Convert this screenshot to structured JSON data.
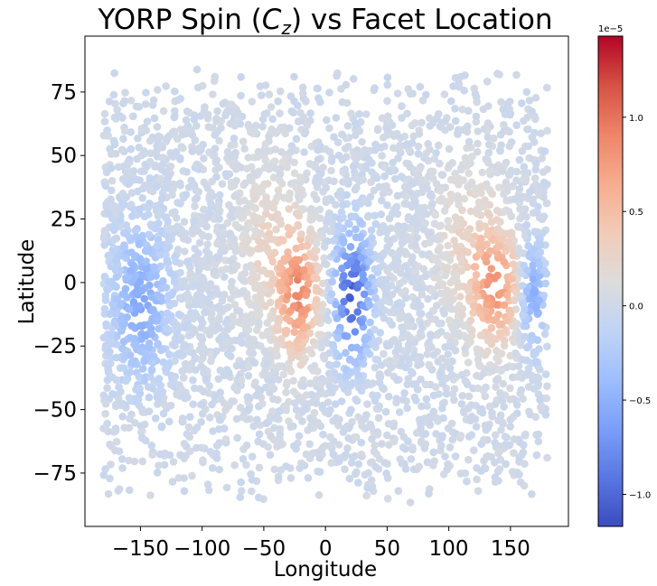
{
  "chart_data": {
    "type": "scatter",
    "title_prefix": "YORP Spin (",
    "title_var": "C",
    "title_sub": "z",
    "title_suffix": ") vs Facet Location",
    "xlabel": "Longitude",
    "ylabel": "Latitude",
    "xlim": [
      -195,
      197
    ],
    "ylim": [
      -96,
      97
    ],
    "xticks": [
      -150,
      -100,
      -50,
      0,
      50,
      100,
      150
    ],
    "xtick_labels": [
      "−150",
      "−100",
      "−50",
      "0",
      "50",
      "100",
      "150"
    ],
    "yticks": [
      75,
      50,
      25,
      0,
      -25,
      -50,
      -75
    ],
    "ytick_labels": [
      "75",
      "50",
      "25",
      "0",
      "−25",
      "−50",
      "−75"
    ],
    "grid": false,
    "colormap": "coolwarm",
    "colorbar": {
      "exponent_label": "1e−5",
      "vmin": -1.17,
      "vmax": 1.43,
      "ticks": [
        1.0,
        0.5,
        0.0,
        -0.5,
        -1.0
      ],
      "tick_labels": [
        "1.0",
        "0.5",
        "0.0",
        "−0.5",
        "−1.0"
      ],
      "colors": [
        "#3b4cc0",
        "#5977e3",
        "#7b9ff9",
        "#9ebeff",
        "#c0d4f5",
        "#dddcdc",
        "#f2cbb7",
        "#f7ac8e",
        "#ee8468",
        "#d65244",
        "#b40426"
      ]
    },
    "point_count_approx": 4000,
    "hotspots": [
      {
        "lon": -22,
        "lat": -5,
        "value": 0.85,
        "width_lon": 16,
        "width_lat": 22
      },
      {
        "lon": 138,
        "lat": -2,
        "value": 0.75,
        "width_lon": 18,
        "width_lat": 22
      },
      {
        "lon": 22,
        "lat": -5,
        "value": -1.05,
        "width_lon": 14,
        "width_lat": 24
      },
      {
        "lon": -150,
        "lat": -8,
        "value": -0.55,
        "width_lon": 22,
        "width_lat": 28
      },
      {
        "lon": 168,
        "lat": -5,
        "value": -0.55,
        "width_lon": 10,
        "width_lat": 20
      },
      {
        "lon": -45,
        "lat": 15,
        "value": 0.25,
        "width_lon": 25,
        "width_lat": 30
      },
      {
        "lon": 115,
        "lat": 15,
        "value": 0.25,
        "width_lon": 25,
        "width_lat": 30
      }
    ]
  }
}
